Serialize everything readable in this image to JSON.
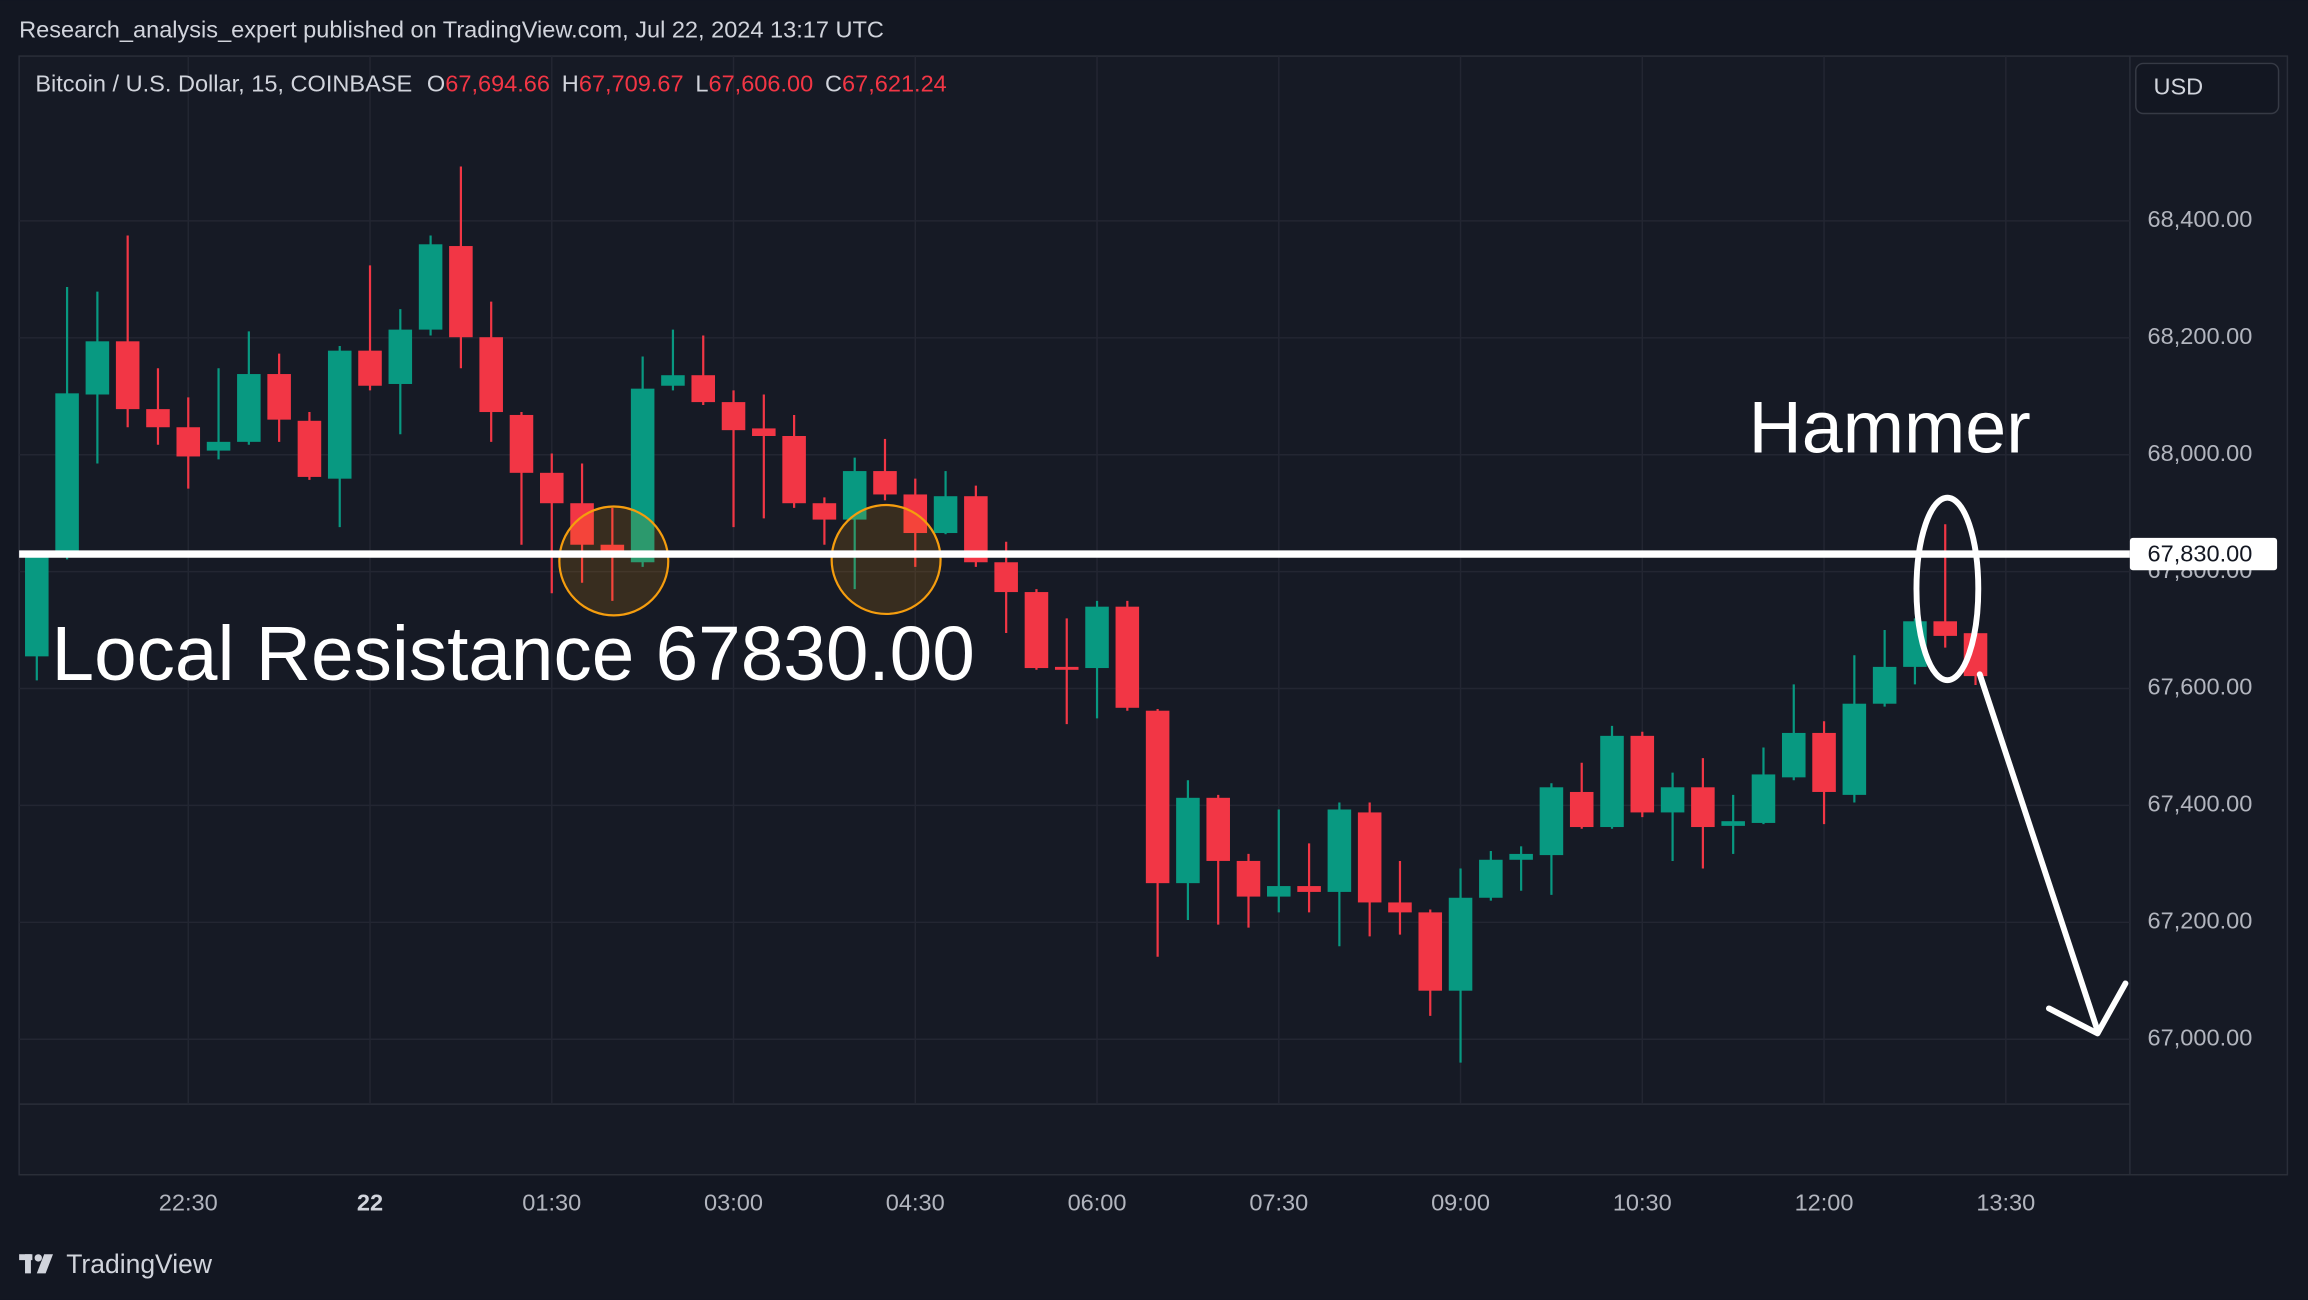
{
  "header": {
    "title": "Research_analysis_expert published on TradingView.com, Jul 22, 2024 13:17 UTC"
  },
  "footer": {
    "brand": "TradingView"
  },
  "toolbar": {
    "currency": "USD"
  },
  "chart_data": {
    "type": "candlestick",
    "symbol": "Bitcoin / U.S. Dollar, 15, COINBASE",
    "legend": [
      {
        "key": "O",
        "value": "67,694.66"
      },
      {
        "key": "H",
        "value": "67,709.67"
      },
      {
        "key": "L",
        "value": "67,606.00"
      },
      {
        "key": "C",
        "value": "67,621.24"
      }
    ],
    "up_color": "#089981",
    "down_color": "#f23645",
    "open": [
      67655,
      67826,
      68103,
      68194,
      68078,
      68047,
      68007,
      68022,
      68138,
      68058,
      67959,
      68178,
      68121,
      68214,
      68357,
      68201,
      68068,
      67969,
      67917,
      67846,
      67816,
      68118,
      68136,
      68090,
      68045,
      68032,
      67917,
      67889,
      67972,
      67932,
      67866,
      67929,
      67816,
      67765,
      67637,
      67635,
      67740,
      67562,
      67267,
      67413,
      67305,
      67244,
      67262,
      67252,
      67388,
      67234,
      67217,
      67083,
      67242,
      67307,
      67315,
      67423,
      67363,
      67519,
      67388,
      67431,
      67365,
      67370,
      67448,
      67524,
      67418,
      67574,
      67637,
      67715,
      67694.66
    ],
    "high": [
      67833,
      68287,
      68279,
      68375,
      68148,
      68098,
      68148,
      68211,
      68173,
      68073,
      68186,
      68324,
      68249,
      68375,
      68493,
      68262,
      68073,
      68002,
      67985,
      67909,
      68168,
      68214,
      68204,
      68110,
      68103,
      68068,
      67927,
      67995,
      68027,
      67959,
      67972,
      67947,
      67851,
      67770,
      67720,
      67750,
      67750,
      67565,
      67443,
      67418,
      67317,
      67393,
      67335,
      67405,
      67405,
      67305,
      67222,
      67292,
      67322,
      67330,
      67438,
      67473,
      67536,
      67526,
      67456,
      67481,
      67418,
      67499,
      67607,
      67544,
      67657,
      67700,
      67720,
      67881,
      67709.67
    ],
    "low": [
      67614,
      67821,
      67985,
      68047,
      68017,
      67942,
      67992,
      68017,
      68022,
      67957,
      67876,
      68110,
      68035,
      68204,
      68148,
      68022,
      67846,
      67763,
      67781,
      67750,
      67808,
      68110,
      68085,
      67876,
      67891,
      67909,
      67846,
      67770,
      67922,
      67808,
      67864,
      67808,
      67695,
      67632,
      67539,
      67549,
      67562,
      67141,
      67204,
      67196,
      67191,
      67217,
      67217,
      67159,
      67176,
      67179,
      67040,
      66960,
      67237,
      67254,
      67247,
      67360,
      67360,
      67380,
      67305,
      67292,
      67317,
      67368,
      67443,
      67368,
      67405,
      67569,
      67607,
      67670,
      67606
    ],
    "close": [
      67826,
      68105,
      68194,
      68078,
      68047,
      67997,
      68022,
      68138,
      68060,
      67962,
      68178,
      68118,
      68214,
      68360,
      68201,
      68073,
      67969,
      67917,
      67846,
      67831,
      68113,
      68136,
      68090,
      68042,
      68032,
      67917,
      67889,
      67972,
      67932,
      67866,
      67929,
      67816,
      67765,
      67635,
      67632,
      67740,
      67567,
      67267,
      67413,
      67305,
      67244,
      67262,
      67252,
      67393,
      67234,
      67217,
      67083,
      67242,
      67307,
      67317,
      67431,
      67363,
      67519,
      67388,
      67431,
      67363,
      67373,
      67453,
      67524,
      67423,
      67574,
      67637,
      67715,
      67690,
      67621.24
    ],
    "ylim": [
      66889,
      68682
    ],
    "yticks": [
      {
        "value": 67000,
        "label": "67,000.00"
      },
      {
        "value": 67200,
        "label": "67,200.00"
      },
      {
        "value": 67400,
        "label": "67,400.00"
      },
      {
        "value": 67600,
        "label": "67,600.00"
      },
      {
        "value": 67800,
        "label": "67,800.00"
      },
      {
        "value": 68000,
        "label": "68,000.00"
      },
      {
        "value": 68200,
        "label": "68,200.00"
      },
      {
        "value": 68400,
        "label": "68,400.00"
      }
    ],
    "xticks": [
      {
        "value": 5,
        "label": "22:30"
      },
      {
        "value": 11,
        "label": "22",
        "bold": true
      },
      {
        "value": 17,
        "label": "01:30"
      },
      {
        "value": 23,
        "label": "03:00"
      },
      {
        "value": 29,
        "label": "04:30"
      },
      {
        "value": 35,
        "label": "06:00"
      },
      {
        "value": 41,
        "label": "07:30"
      },
      {
        "value": 47,
        "label": "09:00"
      },
      {
        "value": 53,
        "label": "10:30"
      },
      {
        "value": 59,
        "label": "12:00"
      },
      {
        "value": 65,
        "label": "13:30"
      }
    ],
    "grid": true,
    "resistance": {
      "value": 67830,
      "label": "67,830.00",
      "text": "Local Resistance 67830.00"
    },
    "annotations": {
      "hammer": "Hammer"
    }
  }
}
